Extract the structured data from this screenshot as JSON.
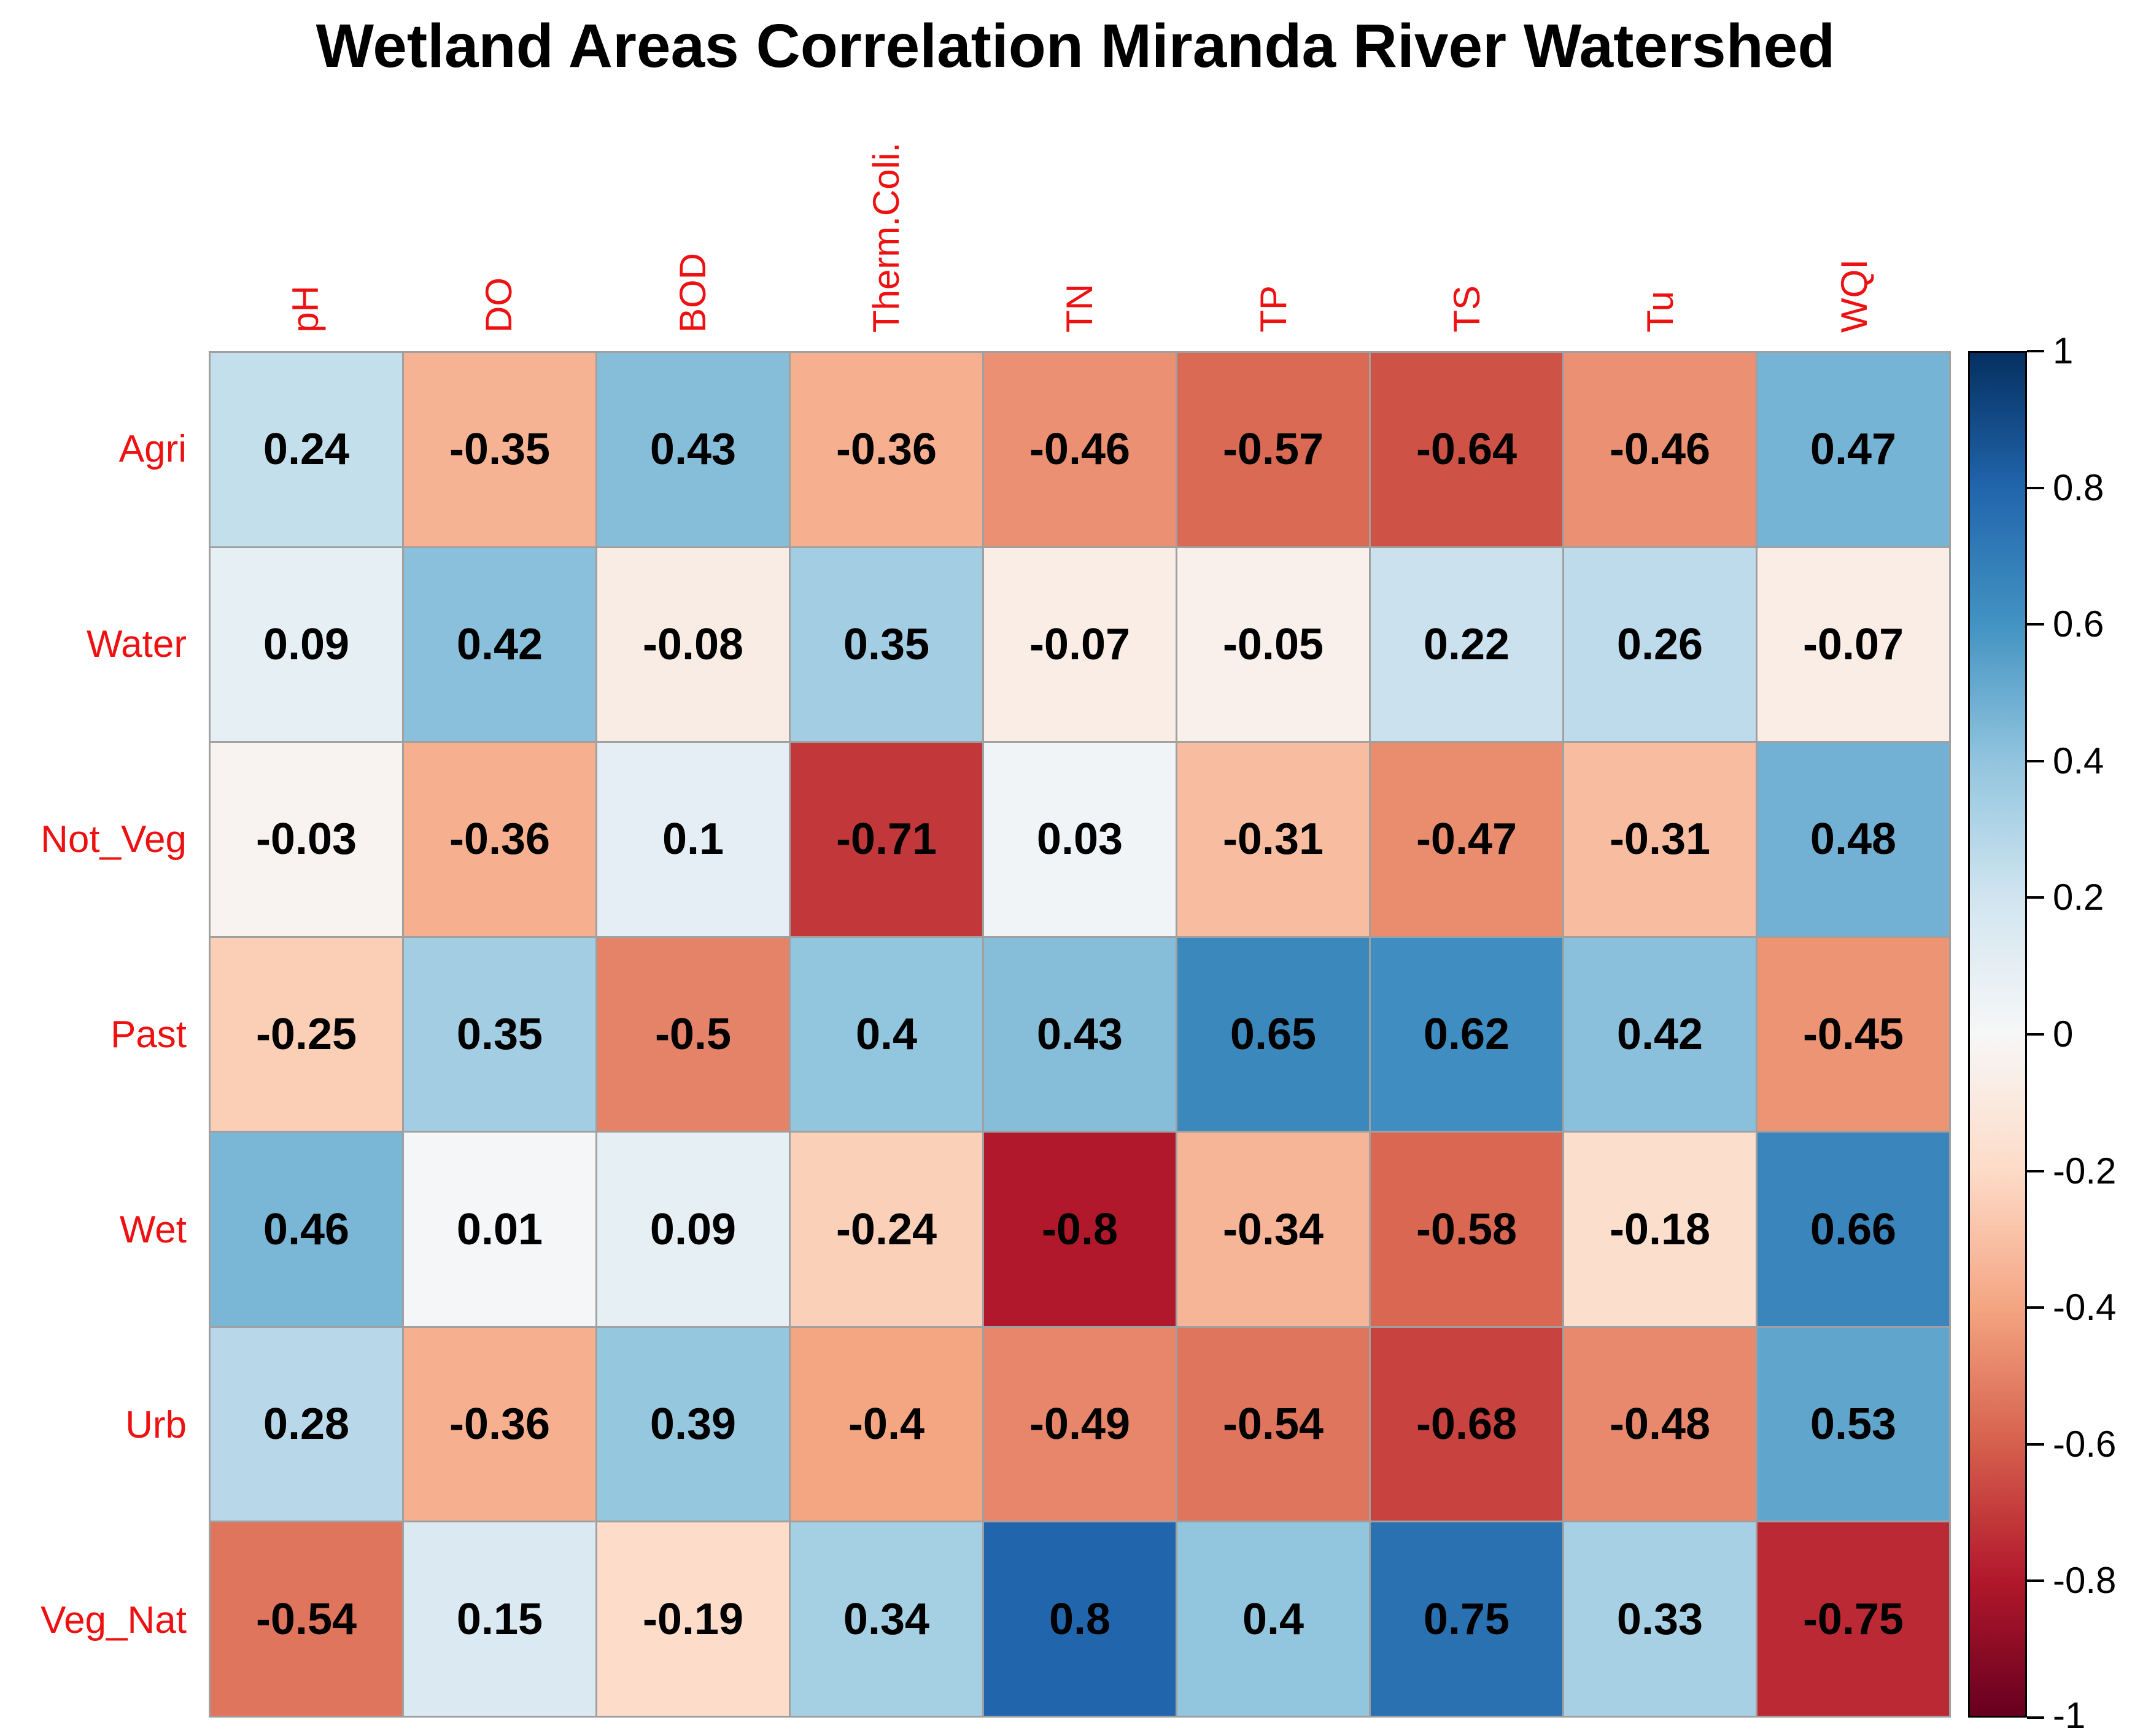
{
  "chart_data": {
    "type": "heatmap",
    "title": "Wetland Areas Correlation Miranda River Watershed",
    "x_categories": [
      "pH",
      "DO",
      "BOD",
      "Therm.Coli.",
      "TN",
      "TP",
      "TS",
      "Tu",
      "WQI"
    ],
    "y_categories": [
      "Agri",
      "Water",
      "Not_Veg",
      "Past",
      "Wet",
      "Urb",
      "Veg_Nat"
    ],
    "values": [
      [
        0.24,
        -0.35,
        0.43,
        -0.36,
        -0.46,
        -0.57,
        -0.64,
        -0.46,
        0.47
      ],
      [
        0.09,
        0.42,
        -0.08,
        0.35,
        -0.07,
        -0.05,
        0.22,
        0.26,
        -0.07
      ],
      [
        -0.03,
        -0.36,
        0.1,
        -0.71,
        0.03,
        -0.31,
        -0.47,
        -0.31,
        0.48
      ],
      [
        -0.25,
        0.35,
        -0.5,
        0.4,
        0.43,
        0.65,
        0.62,
        0.42,
        -0.45
      ],
      [
        0.46,
        0.01,
        0.09,
        -0.24,
        -0.8,
        -0.34,
        -0.58,
        -0.18,
        0.66
      ],
      [
        0.28,
        -0.36,
        0.39,
        -0.4,
        -0.49,
        -0.54,
        -0.68,
        -0.48,
        0.53
      ],
      [
        -0.54,
        0.15,
        -0.19,
        0.34,
        0.8,
        0.4,
        0.75,
        0.33,
        -0.75
      ]
    ],
    "value_range": [
      -1,
      1
    ],
    "colorbar_ticks": [
      "1",
      "0.8",
      "0.6",
      "0.4",
      "0.2",
      "0",
      "-0.2",
      "-0.4",
      "-0.6",
      "-0.8",
      "-1"
    ],
    "colormap": "RdBu (blue = positive, red = negative)",
    "colormap_stops_neg1_to_pos1": [
      "#67001f",
      "#b2182b",
      "#d6604d",
      "#f4a582",
      "#fddbc7",
      "#f7f7f7",
      "#d1e5f0",
      "#92c5de",
      "#4393c3",
      "#2166ac",
      "#053061"
    ],
    "label_color": "#ee1111",
    "cell_text_color": "#000000",
    "legend_position": "right"
  }
}
